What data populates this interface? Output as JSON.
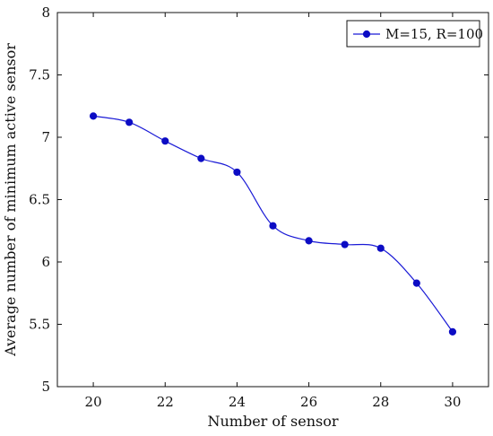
{
  "chart_data": {
    "type": "line",
    "title": "",
    "xlabel": "Number of sensor",
    "ylabel": "Average number of minimum active sensor",
    "xlim": [
      19,
      31
    ],
    "ylim": [
      5,
      8
    ],
    "x_ticks": [
      20,
      22,
      24,
      26,
      28,
      30
    ],
    "y_ticks": [
      5,
      5.5,
      6,
      6.5,
      7,
      7.5,
      8
    ],
    "grid": false,
    "legend_position": "top-right",
    "series": [
      {
        "name": "M=15, R=100",
        "color": "#1a1ad6",
        "marker_color": "#0c0cc4",
        "x": [
          20,
          21,
          22,
          23,
          24,
          25,
          26,
          27,
          28,
          29,
          30
        ],
        "values": [
          7.17,
          7.12,
          6.97,
          6.83,
          6.72,
          6.29,
          6.17,
          6.14,
          6.11,
          5.83,
          5.44
        ]
      }
    ]
  }
}
